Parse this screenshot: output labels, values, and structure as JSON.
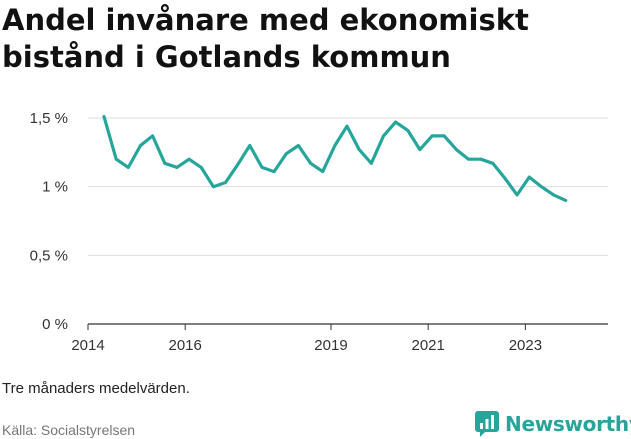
{
  "title_lines": [
    "Andel invånare med ekonomiskt",
    "bistånd i Gotlands kommun"
  ],
  "note": "Tre månaders medelvärden.",
  "source": "Källa: Socialstyrelsen",
  "brand": {
    "name": "Newsworthy",
    "color": "#26a69a"
  },
  "chart_data": {
    "type": "line",
    "title": "Andel invånare med ekonomiskt bistånd i Gotlands kommun",
    "xlabel": "",
    "ylabel": "",
    "xlim": [
      2014,
      2024.7
    ],
    "ylim": [
      0,
      1.5
    ],
    "x_ticks": [
      2014,
      2016,
      2019,
      2021,
      2023
    ],
    "y_ticks": [
      {
        "value": 0,
        "label": "0 %"
      },
      {
        "value": 0.5,
        "label": "0,5 %"
      },
      {
        "value": 1,
        "label": "1 %"
      },
      {
        "value": 1.5,
        "label": "1,5 %"
      }
    ],
    "grid": true,
    "color": "#26a69a",
    "series": [
      {
        "x": [
          2014.33,
          2014.58,
          2014.83,
          2015.08,
          2015.33,
          2015.58,
          2015.83,
          2016.08,
          2016.33,
          2016.58,
          2016.83,
          2017.08,
          2017.33,
          2017.58,
          2017.83,
          2018.08,
          2018.33,
          2018.58,
          2018.83,
          2019.08,
          2019.33,
          2019.58,
          2019.83,
          2020.08,
          2020.33,
          2020.58,
          2020.83,
          2021.08,
          2021.33,
          2021.58,
          2021.83,
          2022.08,
          2022.33,
          2022.58,
          2022.83,
          2023.08,
          2023.33,
          2023.58,
          2023.83
        ],
        "values": [
          1.51,
          1.2,
          1.14,
          1.3,
          1.37,
          1.17,
          1.14,
          1.2,
          1.14,
          1.0,
          1.03,
          1.16,
          1.3,
          1.14,
          1.11,
          1.24,
          1.3,
          1.17,
          1.11,
          1.3,
          1.44,
          1.27,
          1.17,
          1.37,
          1.47,
          1.41,
          1.27,
          1.37,
          1.37,
          1.27,
          1.2,
          1.2,
          1.17,
          1.06,
          0.94,
          1.07,
          1.0,
          0.94,
          0.9
        ]
      }
    ]
  }
}
